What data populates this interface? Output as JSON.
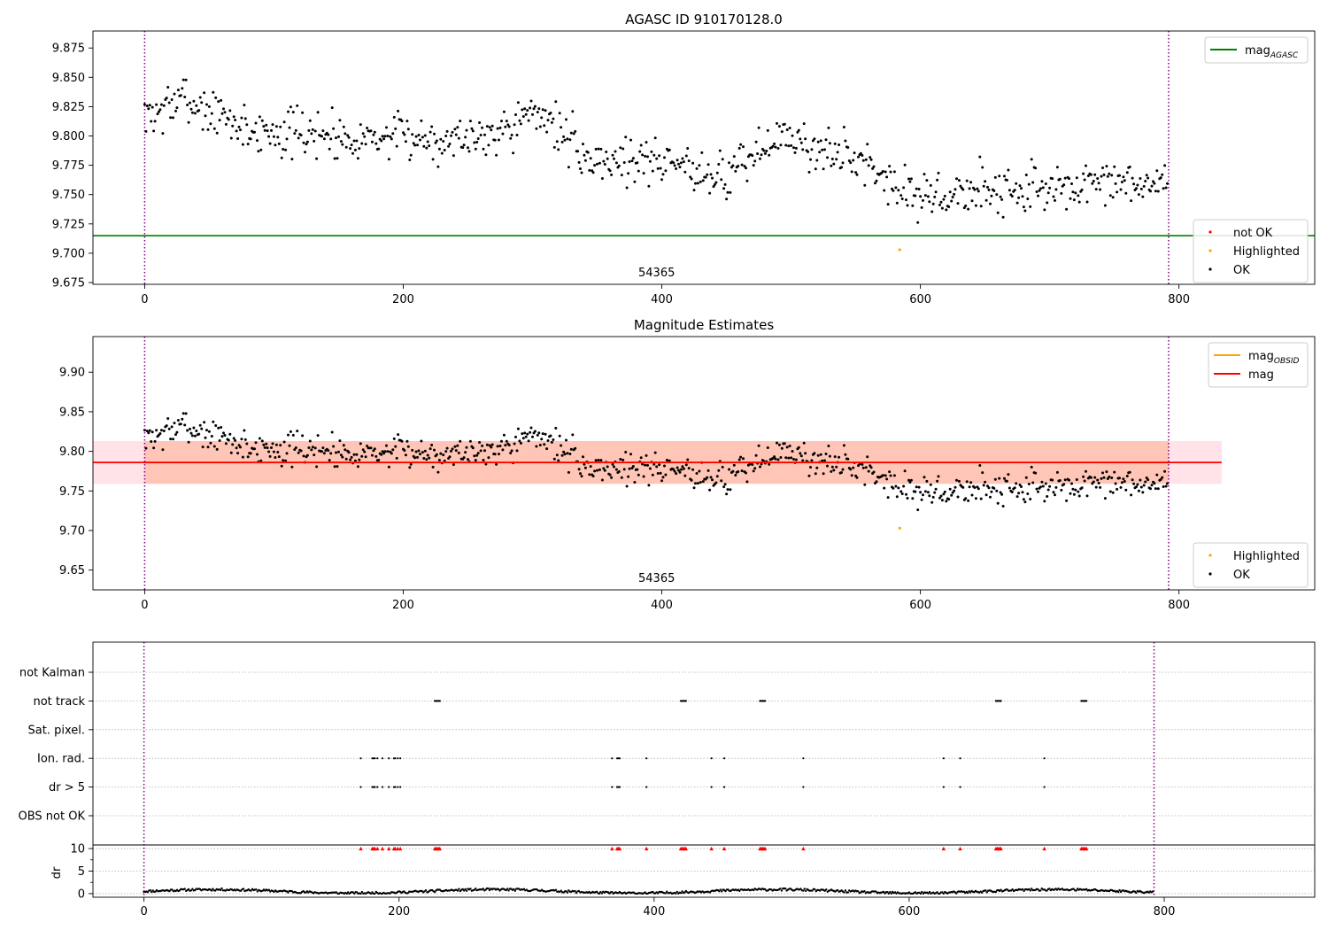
{
  "colors": {
    "ok": "#000000",
    "highlighted": "#ffa500",
    "not_ok": "#ff0000",
    "mag_agasc": "#008000",
    "mag_obsid": "#ffa500",
    "mag": "#ff0000",
    "band_outer": "#ffc0cb",
    "band_inner": "#ffa07a",
    "obs_boundary": "#800080",
    "grid": "#b0b0b0"
  },
  "chart_data": [
    {
      "type": "scatter",
      "title": "AGASC ID 910170128.0",
      "xlim": [
        -40,
        905
      ],
      "ylim": [
        9.6735,
        9.8895
      ],
      "xticks": [
        0,
        200,
        400,
        600,
        800
      ],
      "yticks": [
        9.675,
        9.7,
        9.725,
        9.75,
        9.775,
        9.8,
        9.825,
        9.85,
        9.875
      ],
      "obs_boundaries": [
        0,
        792
      ],
      "obsid_label": {
        "x": 396,
        "text": "54365"
      },
      "mag_agasc": 9.715,
      "legend_upper": [
        {
          "label": "mag",
          "sub": "AGASC",
          "kind": "line",
          "color_key": "mag_agasc"
        }
      ],
      "legend_lower": [
        {
          "label": "not OK",
          "kind": "dot",
          "color_key": "not_ok"
        },
        {
          "label": "Highlighted",
          "kind": "dot",
          "color_key": "highlighted"
        },
        {
          "label": "OK",
          "kind": "dot",
          "color_key": "ok"
        }
      ],
      "series": [
        {
          "name": "OK",
          "trend": {
            "x": [
              0,
              30,
              80,
              150,
              250,
              310,
              340,
              400,
              450,
              490,
              530,
              560,
              600,
              650,
              700,
              790
            ],
            "y": [
              9.815,
              9.832,
              9.805,
              9.8,
              9.798,
              9.82,
              9.78,
              9.78,
              9.765,
              9.8,
              9.785,
              9.778,
              9.745,
              9.755,
              9.755,
              9.76
            ]
          },
          "count": 792,
          "seed": 7,
          "noise": 0.018
        },
        {
          "name": "Highlighted",
          "points": [
            [
              584,
              9.703
            ]
          ]
        }
      ]
    },
    {
      "type": "scatter",
      "title": "Magnitude Estimates",
      "xlim": [
        -40,
        905
      ],
      "ylim": [
        9.625,
        9.945
      ],
      "xticks": [
        0,
        200,
        400,
        600,
        800
      ],
      "yticks": [
        9.65,
        9.7,
        9.75,
        9.8,
        9.85,
        9.9
      ],
      "obs_boundaries": [
        0,
        792
      ],
      "obsid_label": {
        "x": 396,
        "text": "54365"
      },
      "mag": 9.786,
      "mag_obsid": 9.786,
      "band_outer": [
        9.759,
        9.813
      ],
      "band_inner_x": [
        0,
        792
      ],
      "band_x": [
        -40,
        833
      ],
      "legend_upper": [
        {
          "label": "mag",
          "sub": "OBSID",
          "kind": "line",
          "color_key": "mag_obsid"
        },
        {
          "label": "mag",
          "kind": "line",
          "color_key": "mag"
        }
      ],
      "legend_lower": [
        {
          "label": "Highlighted",
          "kind": "dot",
          "color_key": "highlighted"
        },
        {
          "label": "OK",
          "kind": "dot",
          "color_key": "ok"
        }
      ],
      "series": [
        {
          "name": "OK",
          "same_as_panel": 0
        },
        {
          "name": "Highlighted",
          "points": [
            [
              584,
              9.703
            ]
          ]
        }
      ]
    },
    {
      "type": "scatter",
      "title": "",
      "xlim": [
        -40,
        918
      ],
      "xticks": [
        0,
        200,
        400,
        600,
        800
      ],
      "obs_boundaries": [
        0,
        792
      ],
      "flag_rows": [
        "not Kalman",
        "not track",
        "Sat. pixel.",
        "Ion. rad.",
        "dr > 5",
        "OBS not OK"
      ],
      "flags": {
        "not Kalman": [],
        "not track": [
          228,
          229,
          230,
          231,
          232,
          421,
          422,
          423,
          424,
          425,
          483,
          484,
          485,
          486,
          487,
          668,
          669,
          670,
          671,
          672,
          735,
          736,
          737,
          738,
          739
        ],
        "Sat. pixel.": [],
        "Ion. rad.": [
          170,
          179,
          180,
          181,
          183,
          187,
          192,
          196,
          197,
          199,
          201,
          367,
          371,
          372,
          373,
          394,
          445,
          455,
          517,
          627,
          640,
          706
        ],
        "dr > 5": [
          170,
          179,
          180,
          181,
          183,
          187,
          192,
          196,
          197,
          199,
          201,
          367,
          371,
          372,
          373,
          394,
          445,
          455,
          517,
          627,
          640,
          706
        ],
        "OBS not OK": []
      },
      "dr": {
        "ylabel": "dr",
        "ylim": [
          -0.8,
          10.8
        ],
        "yticks": [
          0,
          5,
          10
        ],
        "clipped_marker_at": 10,
        "count": 792,
        "seed": 11
      }
    }
  ]
}
